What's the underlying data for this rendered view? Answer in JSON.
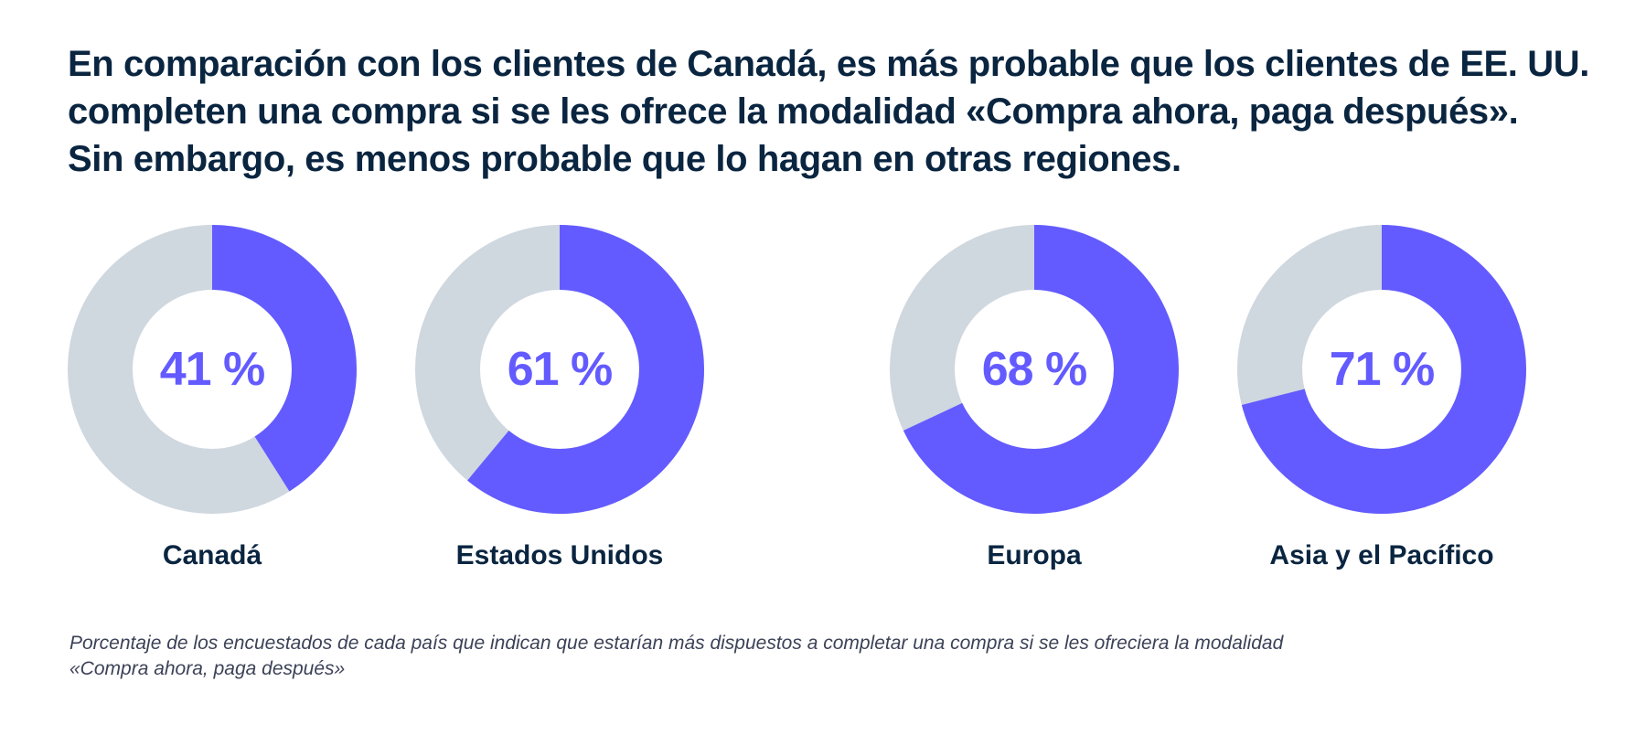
{
  "headline": {
    "line1": "En comparación con los clientes de Canadá, es más probable que los clientes de EE. UU.",
    "line2": "completen una compra si se les ofrece la modalidad «Compra ahora, paga después».",
    "line3": "Sin embargo, es menos probable que lo hagan en otras regiones."
  },
  "colors": {
    "accent": "#635bff",
    "track": "#cfd7df",
    "text": "#0a2540",
    "footnote": "#3c4257"
  },
  "chart_data": {
    "type": "pie",
    "subtype": "donut",
    "unit": "%",
    "categories": [
      "Canadá",
      "Estados Unidos",
      "Europa",
      "Asia y el Pacífico"
    ],
    "values": [
      41,
      61,
      68,
      71
    ],
    "value_labels": [
      "41 %",
      "61 %",
      "68 %",
      "71 %"
    ],
    "max": 100
  },
  "footnote": {
    "line1": "Porcentaje de los encuestados de cada país que indican que estarían más dispuestos a completar una compra si se les ofreciera la modalidad",
    "line2": "«Compra ahora, paga después»"
  }
}
